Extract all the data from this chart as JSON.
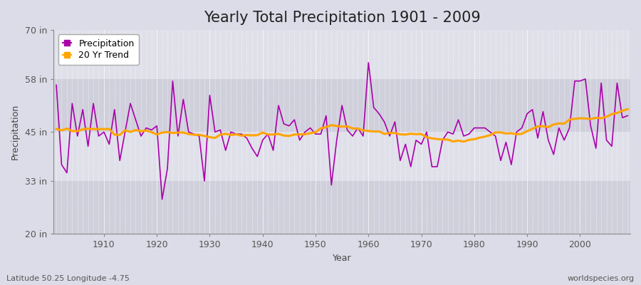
{
  "title": "Yearly Total Precipitation 1901 - 2009",
  "xlabel": "Year",
  "ylabel": "Precipitation",
  "subtitle_left": "Latitude 50.25 Longitude -4.75",
  "subtitle_right": "worldspecies.org",
  "years": [
    1901,
    1902,
    1903,
    1904,
    1905,
    1906,
    1907,
    1908,
    1909,
    1910,
    1911,
    1912,
    1913,
    1914,
    1915,
    1916,
    1917,
    1918,
    1919,
    1920,
    1921,
    1922,
    1923,
    1924,
    1925,
    1926,
    1927,
    1928,
    1929,
    1930,
    1931,
    1932,
    1933,
    1934,
    1935,
    1936,
    1937,
    1938,
    1939,
    1940,
    1941,
    1942,
    1943,
    1944,
    1945,
    1946,
    1947,
    1948,
    1949,
    1950,
    1951,
    1952,
    1953,
    1954,
    1955,
    1956,
    1957,
    1958,
    1959,
    1960,
    1961,
    1962,
    1963,
    1964,
    1965,
    1966,
    1967,
    1968,
    1969,
    1970,
    1971,
    1972,
    1973,
    1974,
    1975,
    1976,
    1977,
    1978,
    1979,
    1980,
    1981,
    1982,
    1983,
    1984,
    1985,
    1986,
    1987,
    1988,
    1989,
    1990,
    1991,
    1992,
    1993,
    1994,
    1995,
    1996,
    1997,
    1998,
    1999,
    2000,
    2001,
    2002,
    2003,
    2004,
    2005,
    2006,
    2007,
    2008,
    2009
  ],
  "precipitation": [
    56.5,
    37.0,
    35.0,
    52.0,
    44.0,
    50.5,
    41.5,
    52.0,
    44.0,
    45.0,
    42.0,
    50.5,
    38.0,
    45.0,
    52.0,
    48.0,
    44.0,
    46.0,
    45.5,
    46.5,
    28.5,
    36.0,
    57.5,
    44.0,
    53.0,
    45.0,
    44.5,
    44.0,
    33.0,
    54.0,
    45.0,
    45.5,
    40.5,
    45.0,
    44.5,
    44.5,
    43.5,
    41.0,
    39.0,
    43.0,
    44.5,
    40.5,
    51.5,
    47.0,
    46.5,
    48.0,
    43.0,
    45.0,
    46.0,
    44.5,
    44.5,
    49.0,
    32.0,
    43.0,
    51.5,
    45.5,
    44.0,
    46.0,
    44.0,
    62.0,
    51.0,
    49.5,
    47.5,
    44.0,
    47.5,
    38.0,
    42.0,
    36.5,
    43.0,
    42.0,
    45.0,
    36.5,
    36.5,
    43.0,
    45.0,
    44.5,
    48.0,
    44.0,
    44.5,
    46.0,
    46.0,
    46.0,
    45.0,
    44.0,
    38.0,
    42.5,
    37.0,
    45.0,
    46.0,
    49.5,
    50.5,
    43.5,
    50.0,
    43.0,
    39.5,
    46.0,
    43.0,
    46.0,
    57.5,
    57.5,
    58.0,
    46.5,
    41.0,
    57.0,
    43.0,
    41.5,
    57.0,
    48.5,
    49.0
  ],
  "ylim": [
    20,
    70
  ],
  "yticks": [
    20,
    33,
    45,
    58,
    70
  ],
  "ytick_labels": [
    "20 in",
    "33 in",
    "45 in",
    "58 in",
    "70 in"
  ],
  "xticks": [
    1910,
    1920,
    1930,
    1940,
    1950,
    1960,
    1970,
    1980,
    1990,
    2000
  ],
  "precip_color": "#AA00AA",
  "trend_color": "#FFA500",
  "bg_color": "#DCDCE8",
  "plot_bg_color": "#E0E0EA",
  "band_color_dark": "#D0D0DC",
  "band_color_light": "#E0E0EA",
  "grid_color": "#FFFFFF",
  "title_fontsize": 15,
  "axis_label_fontsize": 9,
  "tick_fontsize": 9,
  "legend_fontsize": 9,
  "trend_window": 20
}
